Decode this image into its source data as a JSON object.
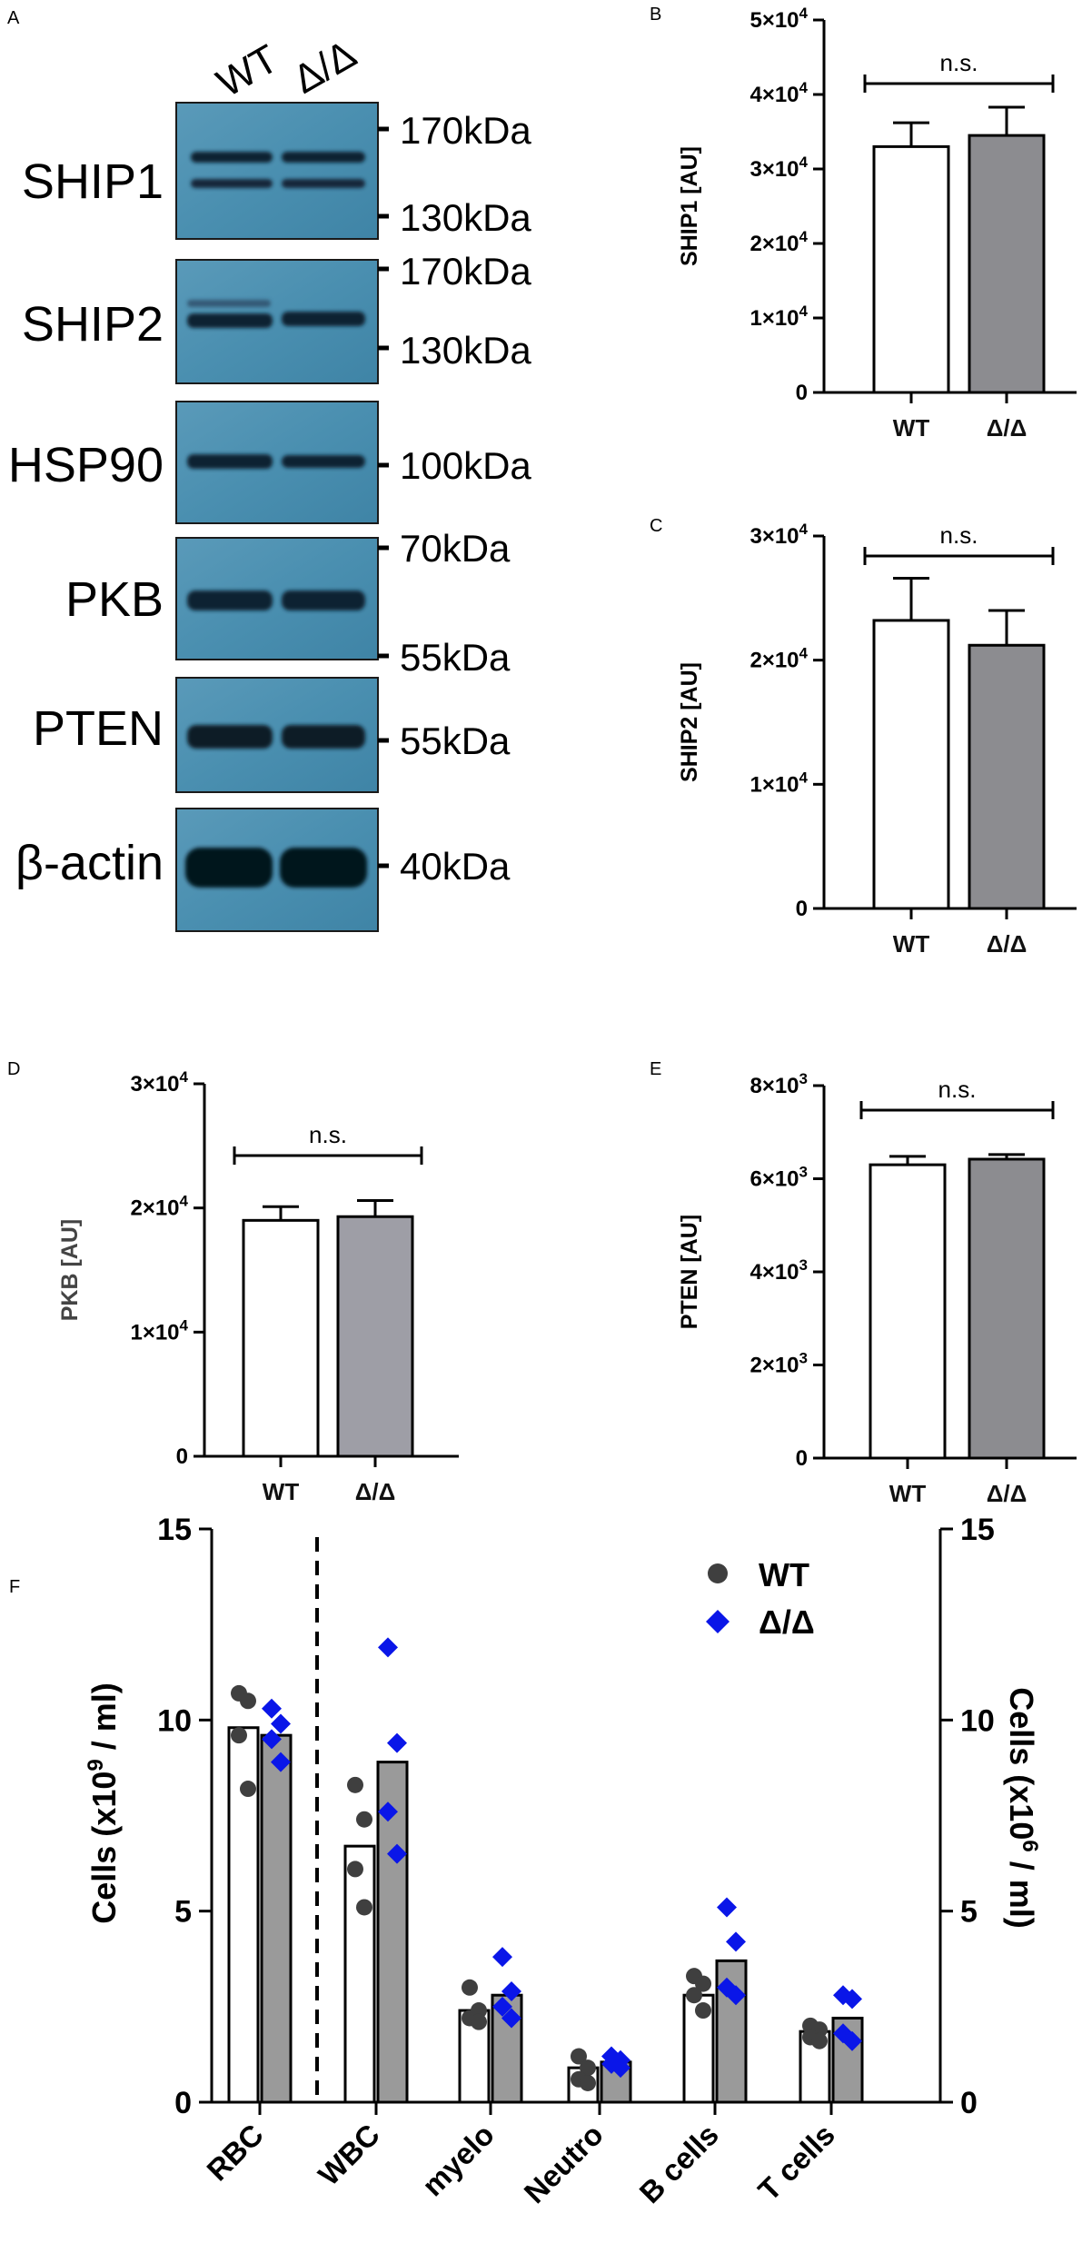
{
  "panels": {
    "a": {
      "letter": "A",
      "lanes": [
        "WT",
        "Δ/Δ"
      ],
      "blots": [
        {
          "protein": "SHIP1",
          "markers": [
            "170kDa",
            "130kDa"
          ]
        },
        {
          "protein": "SHIP2",
          "markers": [
            "170kDa",
            "130kDa"
          ]
        },
        {
          "protein": "HSP90",
          "markers": [
            "100kDa"
          ]
        },
        {
          "protein": "PKB",
          "markers": [
            "70kDa",
            "55kDa"
          ]
        },
        {
          "protein": "PTEN",
          "markers": [
            "55kDa"
          ]
        },
        {
          "protein": "β-actin",
          "markers": [
            "40kDa"
          ]
        }
      ],
      "blot_color": "#4a8fb0"
    },
    "f": {
      "letter": "F"
    }
  },
  "chart_data": [
    {
      "panel": "B",
      "type": "bar",
      "categories": [
        "WT",
        "Δ/Δ"
      ],
      "values": [
        33000,
        34500
      ],
      "errors": [
        3200,
        3800
      ],
      "ylabel": "SHIP1 [AU]",
      "ylim": [
        0,
        50000
      ],
      "yticks": [
        {
          "value": 0,
          "label": "0"
        },
        {
          "value": 10000,
          "label": "1×10⁴"
        },
        {
          "value": 20000,
          "label": "2×10⁴"
        },
        {
          "value": 30000,
          "label": "3×10⁴"
        },
        {
          "value": 40000,
          "label": "4×10⁴"
        },
        {
          "value": 50000,
          "label": "5×10⁴"
        }
      ],
      "annotation": "n.s.",
      "bar_colors": [
        "#ffffff",
        "#8c8c90"
      ]
    },
    {
      "panel": "C",
      "type": "bar",
      "categories": [
        "WT",
        "Δ/Δ"
      ],
      "values": [
        23200,
        21200
      ],
      "errors": [
        3400,
        2800
      ],
      "ylabel": "SHIP2 [AU]",
      "ylim": [
        0,
        30000
      ],
      "yticks": [
        {
          "value": 0,
          "label": "0"
        },
        {
          "value": 10000,
          "label": "1×10⁴"
        },
        {
          "value": 20000,
          "label": "2×10⁴"
        },
        {
          "value": 30000,
          "label": "3×10⁴"
        }
      ],
      "annotation": "n.s.",
      "bar_colors": [
        "#ffffff",
        "#8c8c90"
      ]
    },
    {
      "panel": "D",
      "type": "bar",
      "categories": [
        "WT",
        "Δ/Δ"
      ],
      "values": [
        19000,
        19300
      ],
      "errors": [
        1100,
        1300
      ],
      "ylabel": "PKB [AU]",
      "ylim": [
        0,
        30000
      ],
      "yticks": [
        {
          "value": 0,
          "label": "0"
        },
        {
          "value": 10000,
          "label": "1×10⁴"
        },
        {
          "value": 20000,
          "label": "2×10⁴"
        },
        {
          "value": 30000,
          "label": "3×10⁴"
        }
      ],
      "annotation": "n.s.",
      "bar_colors": [
        "#ffffff",
        "#9e9ea6"
      ]
    },
    {
      "panel": "E",
      "type": "bar",
      "categories": [
        "WT",
        "Δ/Δ"
      ],
      "values": [
        6300,
        6420
      ],
      "errors": [
        180,
        100
      ],
      "ylabel": "PTEN [AU]",
      "ylim": [
        0,
        8000
      ],
      "yticks": [
        {
          "value": 0,
          "label": "0"
        },
        {
          "value": 2000,
          "label": "2×10³"
        },
        {
          "value": 4000,
          "label": "4×10³"
        },
        {
          "value": 6000,
          "label": "6×10³"
        },
        {
          "value": 8000,
          "label": "8×10³"
        }
      ],
      "annotation": "n.s.",
      "bar_colors": [
        "#ffffff",
        "#8c8c90"
      ]
    },
    {
      "panel": "F",
      "type": "bar",
      "categories": [
        "RBC",
        "WBC",
        "myelo",
        "Neutro",
        "B cells",
        "T cells"
      ],
      "ylabel": "Cells (x10⁹ / ml)",
      "y2label": "Cells (x10⁶ / ml)",
      "ylim": [
        0,
        15
      ],
      "y2lim": [
        0,
        15
      ],
      "yticks": [
        0,
        5,
        10,
        15
      ],
      "series": [
        {
          "name": "WT",
          "marker": "circle",
          "color": "#3f3f3f",
          "bar_color": "#ffffff",
          "means": [
            9.8,
            6.7,
            2.4,
            0.9,
            2.8,
            1.85
          ],
          "points": [
            [
              10.7,
              10.5,
              9.6,
              8.2
            ],
            [
              8.3,
              7.4,
              6.1,
              5.1
            ],
            [
              3.0,
              2.4,
              2.2,
              2.1
            ],
            [
              1.2,
              0.9,
              0.6,
              0.5
            ],
            [
              3.3,
              3.1,
              2.8,
              2.4
            ],
            [
              2.0,
              1.9,
              1.7,
              1.6
            ]
          ]
        },
        {
          "name": "Δ/Δ",
          "marker": "diamond",
          "color": "#0a16e8",
          "bar_color": "#9a9a9a",
          "means": [
            9.6,
            8.9,
            2.8,
            1.05,
            3.7,
            2.2
          ],
          "points": [
            [
              10.3,
              9.9,
              9.5,
              8.9
            ],
            [
              11.9,
              9.4,
              7.6,
              6.5
            ],
            [
              3.8,
              2.9,
              2.5,
              2.2
            ],
            [
              1.2,
              1.1,
              1.0,
              0.9
            ],
            [
              5.1,
              4.2,
              3.0,
              2.8
            ],
            [
              2.8,
              2.7,
              1.8,
              1.6
            ]
          ]
        }
      ]
    }
  ]
}
